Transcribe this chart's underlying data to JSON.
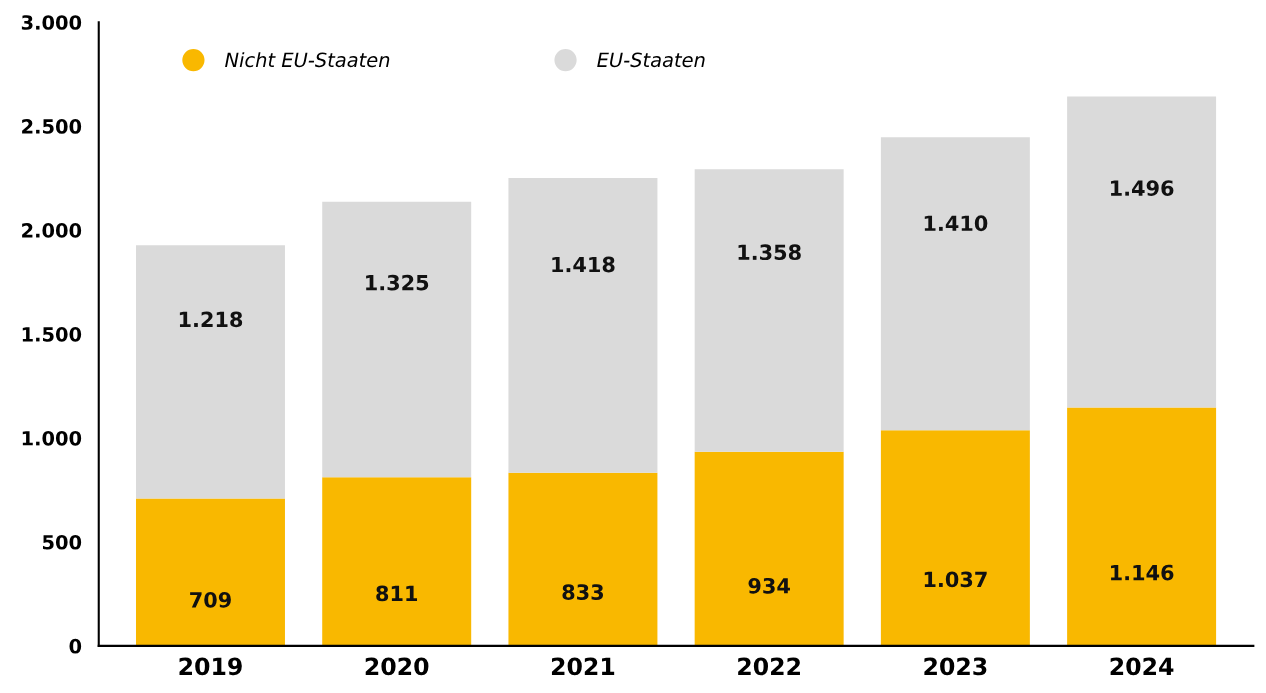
{
  "chart_data": {
    "type": "bar",
    "stacked": true,
    "categories": [
      "2019",
      "2020",
      "2021",
      "2022",
      "2023",
      "2024"
    ],
    "series": [
      {
        "name": "Nicht EU-Staaten",
        "color": "#f9b800",
        "values": [
          709,
          811,
          833,
          934,
          1037,
          1146
        ],
        "value_labels": [
          "709",
          "811",
          "833",
          "934",
          "1.037",
          "1.146"
        ]
      },
      {
        "name": "EU-Staaten",
        "color": "#dadada",
        "values": [
          1218,
          1325,
          1418,
          1358,
          1410,
          1496
        ],
        "value_labels": [
          "1.218",
          "1.325",
          "1.418",
          "1.358",
          "1.410",
          "1.496"
        ]
      }
    ],
    "ylim": [
      0,
      3000
    ],
    "yticks": [
      0,
      500,
      {
        "value": 1000,
        "label": "1.000"
      },
      {
        "value": 1500,
        "label": "1.500"
      },
      {
        "value": 2000,
        "label": "2.000"
      },
      {
        "value": 2500,
        "label": "2.500"
      },
      {
        "value": 3000,
        "label": "3.000"
      }
    ],
    "grid": false,
    "legend": "top left",
    "marker": "circle"
  }
}
